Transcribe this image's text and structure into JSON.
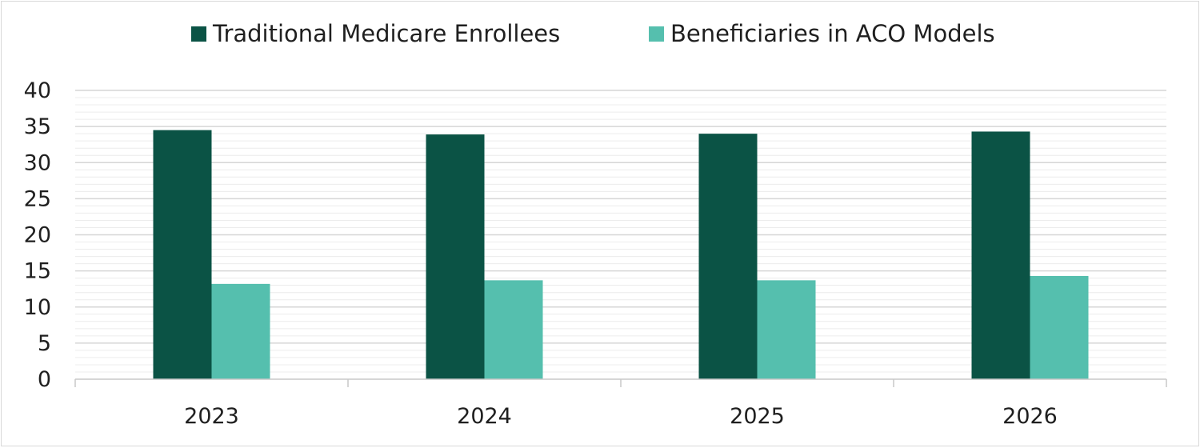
{
  "chart_data": {
    "type": "bar",
    "categories": [
      "2023",
      "2024",
      "2025",
      "2026"
    ],
    "series": [
      {
        "name": "Traditional Medicare Enrollees",
        "values": [
          34.5,
          33.9,
          34.0,
          34.3
        ],
        "color": "#0b5345"
      },
      {
        "name": "Beneficiaries in ACO Models",
        "values": [
          13.2,
          13.7,
          13.7,
          14.3
        ],
        "color": "#55bfae"
      }
    ],
    "title": "",
    "xlabel": "",
    "ylabel": "",
    "ylim": [
      0,
      40
    ],
    "yticks": [
      "0",
      "5",
      "10",
      "15",
      "20",
      "25",
      "30",
      "35",
      "40"
    ],
    "major_grid": true,
    "minor_grid": true,
    "legend_position": "top"
  }
}
